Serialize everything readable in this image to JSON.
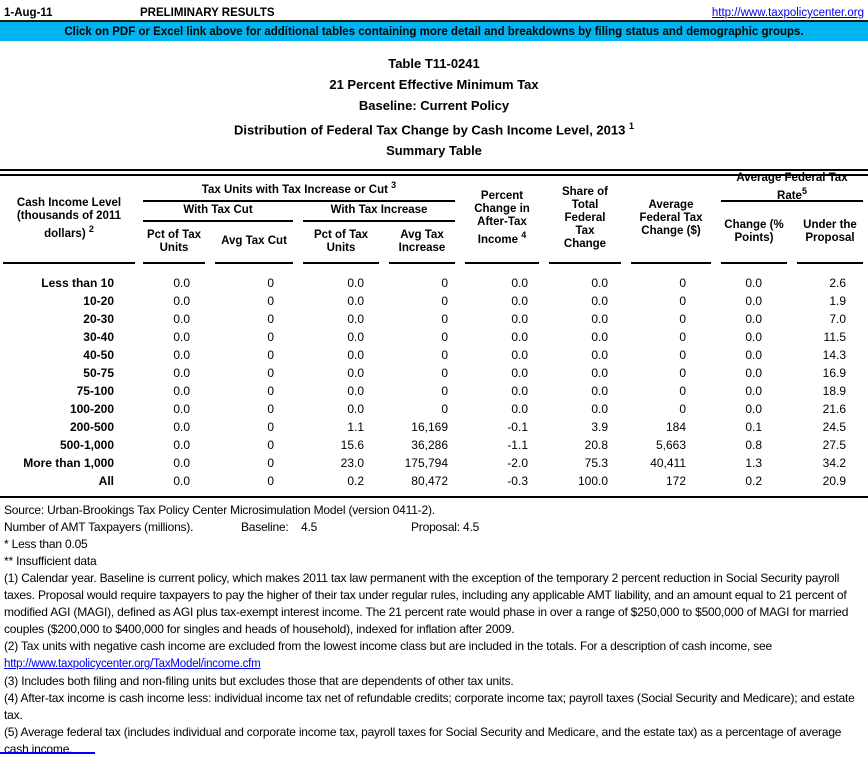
{
  "colors": {
    "banner_bg": "#00B4F0",
    "link_blue": "#0000EE"
  },
  "topbar": {
    "date": "1-Aug-11",
    "status": "PRELIMINARY RESULTS",
    "url": "http://www.taxpolicycenter.org"
  },
  "banner": {
    "text": "Click on PDF or Excel link above for additional tables containing more detail and breakdowns by filing status and demographic groups."
  },
  "title": {
    "line1": "Table T11-0241",
    "line2": "21 Percent Effective Minimum Tax",
    "line3": "Baseline: Current Policy",
    "line4": {
      "text": "Distribution of Federal Tax Change by Cash Income Level, 2013 ",
      "sup": "1"
    },
    "line5": "Summary Table"
  },
  "table": {
    "col1_header": {
      "text": "Cash Income Level (thousands of 2011 dollars) ",
      "sup": "2"
    },
    "group_tax_units": {
      "text": "Tax Units with Tax Increase or Cut ",
      "sup": "3"
    },
    "group_with_cut": "With Tax Cut",
    "group_with_increase": "With Tax Increase",
    "sub_pct_units_cut": "Pct of Tax Units",
    "sub_avg_cut": "Avg Tax Cut",
    "sub_pct_units_inc": "Pct of Tax Units",
    "sub_avg_inc": "Avg Tax Increase",
    "col6_header": {
      "text": "Percent Change in After-Tax Income ",
      "sup": "4"
    },
    "col7_header": "Share of Total Federal Tax Change",
    "col8_header": "Average Federal Tax Change ($)",
    "group_avg_rate": {
      "text": "Average Federal Tax Rate",
      "sup": "5"
    },
    "col9_header": "Change (% Points)",
    "col10_header": "Under the Proposal",
    "rows": [
      {
        "label": "Less than 10",
        "cells": [
          "0.0",
          "0",
          "0.0",
          "0",
          "0.0",
          "0.0",
          "0",
          "0.0",
          "2.6"
        ]
      },
      {
        "label": "10-20",
        "cells": [
          "0.0",
          "0",
          "0.0",
          "0",
          "0.0",
          "0.0",
          "0",
          "0.0",
          "1.9"
        ]
      },
      {
        "label": "20-30",
        "cells": [
          "0.0",
          "0",
          "0.0",
          "0",
          "0.0",
          "0.0",
          "0",
          "0.0",
          "7.0"
        ]
      },
      {
        "label": "30-40",
        "cells": [
          "0.0",
          "0",
          "0.0",
          "0",
          "0.0",
          "0.0",
          "0",
          "0.0",
          "11.5"
        ]
      },
      {
        "label": "40-50",
        "cells": [
          "0.0",
          "0",
          "0.0",
          "0",
          "0.0",
          "0.0",
          "0",
          "0.0",
          "14.3"
        ]
      },
      {
        "label": "50-75",
        "cells": [
          "0.0",
          "0",
          "0.0",
          "0",
          "0.0",
          "0.0",
          "0",
          "0.0",
          "16.9"
        ]
      },
      {
        "label": "75-100",
        "cells": [
          "0.0",
          "0",
          "0.0",
          "0",
          "0.0",
          "0.0",
          "0",
          "0.0",
          "18.9"
        ]
      },
      {
        "label": "100-200",
        "cells": [
          "0.0",
          "0",
          "0.0",
          "0",
          "0.0",
          "0.0",
          "0",
          "0.0",
          "21.6"
        ]
      },
      {
        "label": "200-500",
        "cells": [
          "0.0",
          "0",
          "1.1",
          "16,169",
          "-0.1",
          "3.9",
          "184",
          "0.1",
          "24.5"
        ]
      },
      {
        "label": "500-1,000",
        "cells": [
          "0.0",
          "0",
          "15.6",
          "36,286",
          "-1.1",
          "20.8",
          "5,663",
          "0.8",
          "27.5"
        ]
      },
      {
        "label": "More than 1,000",
        "cells": [
          "0.0",
          "0",
          "23.0",
          "175,794",
          "-2.0",
          "75.3",
          "40,411",
          "1.3",
          "34.2"
        ]
      },
      {
        "label": "All",
        "cells": [
          "0.0",
          "0",
          "0.2",
          "80,472",
          "-0.3",
          "100.0",
          "172",
          "0.2",
          "20.9"
        ]
      }
    ]
  },
  "footer": {
    "source": "Source: Urban-Brookings Tax Policy Center Microsimulation Model (version 0411-2).",
    "amt": {
      "label": "Number of AMT Taxpayers (millions).",
      "baseline_label": "Baseline:",
      "baseline_value": "4.5",
      "proposal_label": "Proposal:",
      "proposal_value": "4.5"
    },
    "note_star": "* Less than 0.05",
    "note_double_star": "** Insufficient data",
    "footnotes": [
      "(1) Calendar year. Baseline is current policy, which makes 2011 tax law permanent with the exception of the temporary 2 percent reduction in Social Security payroll taxes. Proposal would require taxpayers to pay the higher of their tax under regular rules, including any applicable AMT liability, and an amount equal to 21 percent of modified AGI (MAGI), defined as AGI plus tax-exempt interest income. The 21 percent rate would phase in over a range of $250,000 to $500,000 of MAGI for married couples ($200,000 to $400,000 for singles and heads of household), indexed for inflation after 2009.",
      "(2) Tax units with negative cash income are excluded from the lowest income class but are included in the totals. For a description of cash income, see",
      "(3) Includes both filing and non-filing units but excludes those that are dependents of other tax units.",
      "(4) After-tax income is cash income less: individual income tax net of refundable credits; corporate income tax; payroll taxes (Social Security and Medicare); and estate tax.",
      "(5) Average federal tax (includes individual and corporate income tax, payroll taxes for Social Security and Medicare, and the estate tax) as a percentage of average cash income."
    ],
    "fn2_link": "http://www.taxpolicycenter.org/TaxModel/income.cfm"
  }
}
